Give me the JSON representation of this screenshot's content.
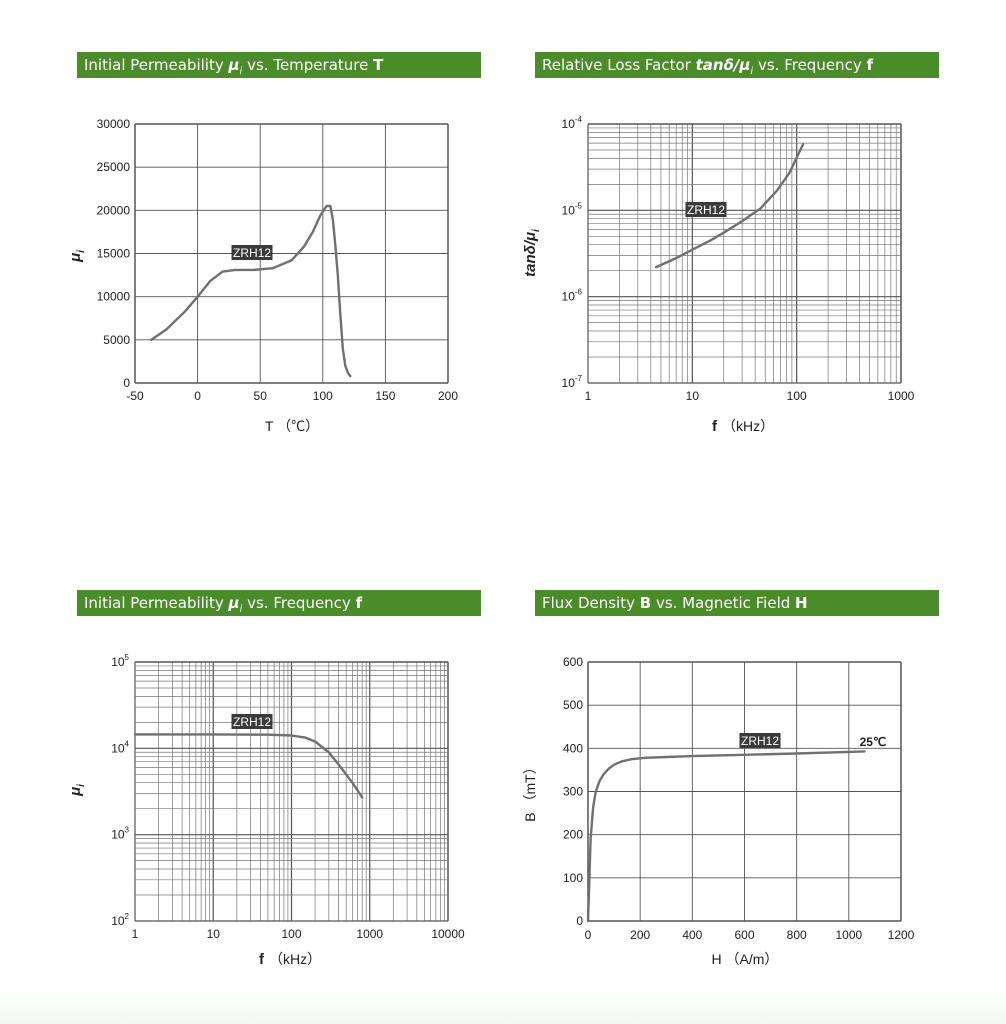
{
  "charts": {
    "c1": {
      "banner": {
        "pre": "Initial Permeability ",
        "sym": "μ",
        "sub": "i",
        "mid": " vs. Temperature ",
        "bold": "T"
      },
      "ylabel": "μ",
      "ylabel_sub": "i",
      "xlabel": "T （℃）",
      "tag": "ZRH12"
    },
    "c2": {
      "banner": {
        "pre": "Relative Loss Factor ",
        "sym": "tanδ/μ",
        "sub": "i",
        "mid": " vs. Frequency ",
        "bold": "f"
      },
      "ylabel": "tanδ/μ",
      "ylabel_sub": "i",
      "xlabel_bold": "f",
      "xlabel": "（kHz）",
      "tag": "ZRH12"
    },
    "c3": {
      "banner": {
        "pre": "Initial Permeability ",
        "sym": "μ",
        "sub": "i",
        "mid": " vs. Frequency ",
        "bold": "f"
      },
      "ylabel": "μ",
      "ylabel_sub": "i",
      "xlabel_bold": "f",
      "xlabel": "（kHz）",
      "tag": "ZRH12"
    },
    "c4": {
      "banner": {
        "pre": "Flux Density ",
        "bold1": "B",
        "mid": " vs. Magnetic Field ",
        "bold": "H"
      },
      "ylabel": "B （mT）",
      "xlabel": "H （A/m）",
      "tag": "ZRH12",
      "annotation": "25℃"
    }
  },
  "chart_data": [
    {
      "type": "line",
      "title": "Initial Permeability μi vs. Temperature T",
      "xlabel": "T （℃）",
      "ylabel": "μi",
      "xlim": [
        -50,
        200
      ],
      "ylim": [
        0,
        30000
      ],
      "x_ticks": [
        -50,
        0,
        50,
        100,
        150,
        200
      ],
      "y_ticks": [
        0,
        5000,
        10000,
        15000,
        20000,
        25000,
        30000
      ],
      "grid": true,
      "series": [
        {
          "name": "ZRH12",
          "x": [
            -37,
            -25,
            -10,
            0,
            10,
            20,
            30,
            45,
            60,
            75,
            85,
            92,
            98,
            103,
            106,
            108,
            110,
            112,
            114,
            116,
            118,
            120,
            122
          ],
          "y": [
            5000,
            6200,
            8300,
            10000,
            11800,
            12900,
            13100,
            13100,
            13300,
            14200,
            15800,
            17500,
            19400,
            20500,
            20500,
            19000,
            16000,
            12500,
            8000,
            4000,
            2000,
            1200,
            800
          ]
        }
      ]
    },
    {
      "type": "line",
      "title": "Relative Loss Factor tanδ/μi vs. Frequency f",
      "xlabel": "f （kHz）",
      "ylabel": "tanδ/μi",
      "x_scale": "log",
      "y_scale": "log",
      "xlim": [
        1,
        1000
      ],
      "ylim": [
        1e-07,
        0.0001
      ],
      "x_ticks": [
        1,
        10,
        100,
        1000
      ],
      "y_ticks": [
        "10-7",
        "10-6",
        "10-5",
        "10-4"
      ],
      "grid": true,
      "series": [
        {
          "name": "ZRH12",
          "x": [
            4.5,
            7,
            10,
            15,
            20,
            30,
            45,
            65,
            85,
            115
          ],
          "y": [
            2.2e-06,
            2.8e-06,
            3.5e-06,
            4.5e-06,
            5.5e-06,
            7.5e-06,
            1.05e-05,
            1.7e-05,
            2.7e-05,
            5.8e-05
          ]
        }
      ]
    },
    {
      "type": "line",
      "title": "Initial Permeability μi vs. Frequency f",
      "xlabel": "f （kHz）",
      "ylabel": "μi",
      "x_scale": "log",
      "y_scale": "log",
      "xlim": [
        1,
        10000
      ],
      "ylim": [
        100,
        100000
      ],
      "x_ticks": [
        1,
        10,
        100,
        1000,
        10000
      ],
      "y_ticks": [
        "10^2",
        "10^3",
        "10^4",
        "10^5"
      ],
      "grid": true,
      "series": [
        {
          "name": "ZRH12",
          "x": [
            1,
            10,
            50,
            100,
            150,
            200,
            300,
            400,
            600,
            800
          ],
          "y": [
            14500,
            14500,
            14400,
            14100,
            13300,
            12000,
            9000,
            6500,
            4000,
            2700
          ]
        }
      ]
    },
    {
      "type": "line",
      "title": "Flux Density B vs. Magnetic Field H",
      "xlabel": "H （A/m）",
      "ylabel": "B （mT）",
      "xlim": [
        0,
        1200
      ],
      "ylim": [
        0,
        600
      ],
      "x_ticks": [
        0,
        200,
        400,
        600,
        800,
        1000,
        1200
      ],
      "y_ticks": [
        0,
        100,
        200,
        300,
        400,
        500,
        600
      ],
      "grid": true,
      "annotations": [
        "25℃"
      ],
      "series": [
        {
          "name": "ZRH12",
          "x": [
            0,
            5,
            10,
            20,
            30,
            45,
            60,
            80,
            100,
            130,
            170,
            220,
            300,
            400,
            600,
            800,
            1060
          ],
          "y": [
            0,
            90,
            190,
            265,
            300,
            325,
            340,
            353,
            362,
            370,
            375,
            378,
            380,
            382,
            385,
            388,
            393
          ]
        }
      ]
    }
  ]
}
